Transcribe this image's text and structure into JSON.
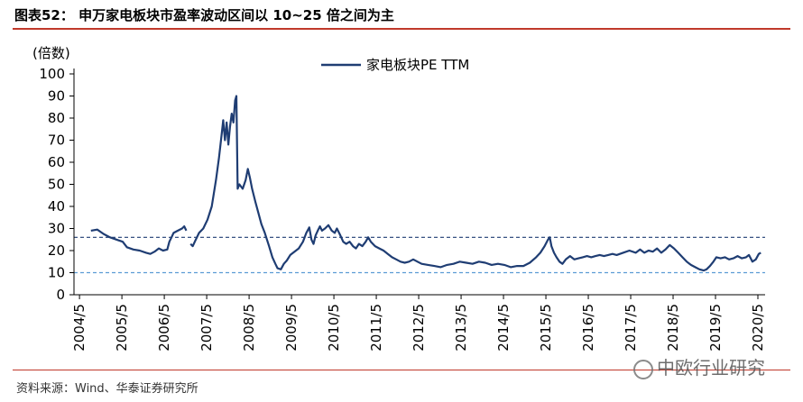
{
  "figure": {
    "title": "图表52： 申万家电板块市盈率波动区间以 10~25 倍之间为主",
    "source": "资料来源：Wind、华泰证券研究所",
    "watermark": "中欧行业研究"
  },
  "colors": {
    "accent_rule": "#c0392b",
    "series_line": "#1f3d73",
    "upper_band": "#1f3d73",
    "lower_band": "#5b9bd5"
  },
  "chart_data": {
    "type": "line",
    "title": "",
    "ylabel": "(倍数)",
    "xlabel": "",
    "ylim": [
      0,
      100
    ],
    "yticks": [
      0,
      10,
      20,
      30,
      40,
      50,
      60,
      70,
      80,
      90,
      100
    ],
    "x_range": [
      2004.2,
      2020.5
    ],
    "xticks": [
      {
        "label": "2004/5",
        "t": 2004.33
      },
      {
        "label": "2005/5",
        "t": 2005.33
      },
      {
        "label": "2006/5",
        "t": 2006.33
      },
      {
        "label": "2007/5",
        "t": 2007.33
      },
      {
        "label": "2008/5",
        "t": 2008.33
      },
      {
        "label": "2009/5",
        "t": 2009.33
      },
      {
        "label": "2010/5",
        "t": 2010.33
      },
      {
        "label": "2011/5",
        "t": 2011.33
      },
      {
        "label": "2012/5",
        "t": 2012.33
      },
      {
        "label": "2013/5",
        "t": 2013.33
      },
      {
        "label": "2014/5",
        "t": 2014.33
      },
      {
        "label": "2015/5",
        "t": 2015.33
      },
      {
        "label": "2016/5",
        "t": 2016.33
      },
      {
        "label": "2017/5",
        "t": 2017.33
      },
      {
        "label": "2018/5",
        "t": 2018.33
      },
      {
        "label": "2019/5",
        "t": 2019.33
      },
      {
        "label": "2020/5",
        "t": 2020.33
      }
    ],
    "legend": {
      "label": "家电板块PE TTM",
      "position": "top-center"
    },
    "reference_lines": [
      {
        "name": "upper",
        "value": 26,
        "style": "dashed"
      },
      {
        "name": "lower",
        "value": 10,
        "style": "dashed"
      }
    ],
    "series": [
      {
        "name": "家电板块PE TTM",
        "segments": [
          [
            [
              2004.6,
              29
            ],
            [
              2004.75,
              29.5
            ],
            [
              2004.9,
              27.5
            ],
            [
              2005.05,
              26
            ],
            [
              2005.2,
              25
            ],
            [
              2005.35,
              24
            ],
            [
              2005.45,
              21.5
            ],
            [
              2005.6,
              20.5
            ],
            [
              2005.75,
              20
            ],
            [
              2005.9,
              19
            ],
            [
              2006.0,
              18.5
            ],
            [
              2006.1,
              19.5
            ],
            [
              2006.2,
              21
            ],
            [
              2006.3,
              20
            ],
            [
              2006.4,
              20.5
            ],
            [
              2006.45,
              24
            ],
            [
              2006.5,
              26
            ],
            [
              2006.55,
              28
            ],
            [
              2006.65,
              29
            ],
            [
              2006.75,
              30
            ],
            [
              2006.8,
              31
            ],
            [
              2006.85,
              29
            ]
          ],
          [
            [
              2006.95,
              23
            ],
            [
              2007.0,
              22
            ],
            [
              2007.05,
              24
            ],
            [
              2007.15,
              28
            ],
            [
              2007.25,
              30
            ],
            [
              2007.35,
              34
            ],
            [
              2007.45,
              40
            ],
            [
              2007.55,
              52
            ],
            [
              2007.62,
              62
            ],
            [
              2007.68,
              72
            ],
            [
              2007.72,
              79
            ],
            [
              2007.76,
              70
            ],
            [
              2007.8,
              78
            ],
            [
              2007.84,
              68
            ],
            [
              2007.88,
              76
            ],
            [
              2007.92,
              82
            ],
            [
              2007.96,
              78
            ],
            [
              2008.0,
              88
            ],
            [
              2008.03,
              90
            ],
            [
              2008.06,
              48
            ],
            [
              2008.1,
              50
            ],
            [
              2008.18,
              48
            ],
            [
              2008.25,
              52
            ],
            [
              2008.3,
              57
            ],
            [
              2008.35,
              53
            ],
            [
              2008.4,
              48
            ],
            [
              2008.48,
              42
            ],
            [
              2008.55,
              37
            ],
            [
              2008.62,
              32
            ],
            [
              2008.7,
              28
            ],
            [
              2008.8,
              22
            ],
            [
              2008.88,
              17
            ],
            [
              2008.95,
              14
            ],
            [
              2009.0,
              12
            ],
            [
              2009.08,
              11.5
            ],
            [
              2009.15,
              14
            ],
            [
              2009.22,
              15.5
            ],
            [
              2009.3,
              18
            ],
            [
              2009.4,
              19.5
            ],
            [
              2009.5,
              21
            ],
            [
              2009.6,
              24
            ],
            [
              2009.68,
              28
            ],
            [
              2009.75,
              30.5
            ],
            [
              2009.8,
              25
            ],
            [
              2009.85,
              23
            ],
            [
              2009.9,
              27
            ],
            [
              2009.95,
              29
            ],
            [
              2010.0,
              31
            ],
            [
              2010.05,
              29
            ],
            [
              2010.12,
              30
            ],
            [
              2010.2,
              31.5
            ],
            [
              2010.28,
              29
            ],
            [
              2010.35,
              28
            ],
            [
              2010.4,
              30
            ],
            [
              2010.48,
              27
            ],
            [
              2010.55,
              24
            ],
            [
              2010.62,
              23
            ],
            [
              2010.7,
              24
            ],
            [
              2010.78,
              22
            ],
            [
              2010.85,
              21
            ],
            [
              2010.92,
              23
            ],
            [
              2011.0,
              22
            ],
            [
              2011.08,
              24
            ],
            [
              2011.14,
              26
            ],
            [
              2011.2,
              24
            ],
            [
              2011.3,
              22
            ],
            [
              2011.4,
              21
            ],
            [
              2011.5,
              20
            ],
            [
              2011.6,
              18.5
            ],
            [
              2011.7,
              17
            ],
            [
              2011.8,
              16
            ],
            [
              2011.9,
              15
            ],
            [
              2012.0,
              14.5
            ],
            [
              2012.1,
              15
            ],
            [
              2012.2,
              16
            ],
            [
              2012.3,
              15
            ],
            [
              2012.4,
              14
            ],
            [
              2012.55,
              13.5
            ],
            [
              2012.7,
              13
            ],
            [
              2012.85,
              12.5
            ],
            [
              2013.0,
              13.5
            ],
            [
              2013.15,
              14
            ],
            [
              2013.3,
              15
            ],
            [
              2013.45,
              14.5
            ],
            [
              2013.6,
              14
            ],
            [
              2013.75,
              15
            ],
            [
              2013.9,
              14.5
            ],
            [
              2014.05,
              13.5
            ],
            [
              2014.2,
              14
            ],
            [
              2014.35,
              13.5
            ],
            [
              2014.5,
              12.5
            ],
            [
              2014.65,
              13
            ],
            [
              2014.8,
              13
            ],
            [
              2014.95,
              14.5
            ],
            [
              2015.1,
              17
            ],
            [
              2015.2,
              19
            ],
            [
              2015.3,
              22
            ],
            [
              2015.38,
              25
            ],
            [
              2015.42,
              26
            ],
            [
              2015.46,
              22
            ],
            [
              2015.52,
              19
            ],
            [
              2015.58,
              17
            ],
            [
              2015.65,
              15
            ],
            [
              2015.72,
              14
            ],
            [
              2015.8,
              16
            ],
            [
              2015.9,
              17.5
            ],
            [
              2016.0,
              16
            ],
            [
              2016.1,
              16.5
            ],
            [
              2016.2,
              17
            ],
            [
              2016.3,
              17.5
            ],
            [
              2016.4,
              17
            ],
            [
              2016.5,
              17.5
            ],
            [
              2016.6,
              18
            ],
            [
              2016.7,
              17.5
            ],
            [
              2016.8,
              18
            ],
            [
              2016.9,
              18.5
            ],
            [
              2017.0,
              18
            ],
            [
              2017.15,
              19
            ],
            [
              2017.3,
              20
            ],
            [
              2017.45,
              19
            ],
            [
              2017.55,
              20.5
            ],
            [
              2017.65,
              19
            ],
            [
              2017.75,
              20
            ],
            [
              2017.85,
              19.5
            ],
            [
              2017.95,
              21
            ],
            [
              2018.05,
              19
            ],
            [
              2018.15,
              20.5
            ],
            [
              2018.25,
              22.5
            ],
            [
              2018.35,
              21
            ],
            [
              2018.45,
              19
            ],
            [
              2018.55,
              17
            ],
            [
              2018.65,
              15
            ],
            [
              2018.75,
              13.5
            ],
            [
              2018.85,
              12.5
            ],
            [
              2018.95,
              11.5
            ],
            [
              2019.05,
              11
            ],
            [
              2019.12,
              11.5
            ],
            [
              2019.2,
              13
            ],
            [
              2019.28,
              15
            ],
            [
              2019.35,
              17
            ],
            [
              2019.45,
              16.5
            ],
            [
              2019.55,
              17
            ],
            [
              2019.65,
              16
            ],
            [
              2019.75,
              16.5
            ],
            [
              2019.85,
              17.5
            ],
            [
              2019.95,
              16.5
            ],
            [
              2020.05,
              17
            ],
            [
              2020.12,
              18
            ],
            [
              2020.2,
              15
            ],
            [
              2020.28,
              16
            ],
            [
              2020.35,
              18.5
            ],
            [
              2020.4,
              19
            ]
          ]
        ]
      }
    ]
  }
}
